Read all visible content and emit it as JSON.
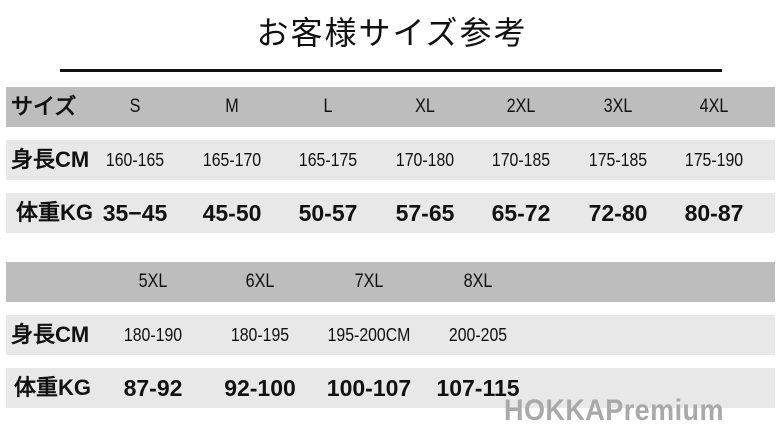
{
  "title": "お客様サイズ参考",
  "labels": {
    "size": "サイズ",
    "height": "身長CM",
    "weight": "体重KG"
  },
  "table1": {
    "sizes": [
      "S",
      "M",
      "L",
      "XL",
      "2XL",
      "3XL",
      "4XL"
    ],
    "heights": [
      "160-165",
      "165-170",
      "165-175",
      "170-180",
      "170-185",
      "175-185",
      "175-190"
    ],
    "weights": [
      "35−45",
      "45-50",
      "50-57",
      "57-65",
      "65-72",
      "72-80",
      "80-87"
    ]
  },
  "table2": {
    "sizes": [
      "5XL",
      "6XL",
      "7XL",
      "8XL"
    ],
    "heights": [
      "180-190",
      "180-195",
      "195-200CM",
      "200-205"
    ],
    "weights": [
      "87-92",
      "92-100",
      "100-107",
      "107-115"
    ]
  },
  "watermark": "HOKKAPremium",
  "colors": {
    "header_band": "#bdbdbd",
    "row_band": "#e8e8e8",
    "watermark": "#a9a9a9"
  }
}
